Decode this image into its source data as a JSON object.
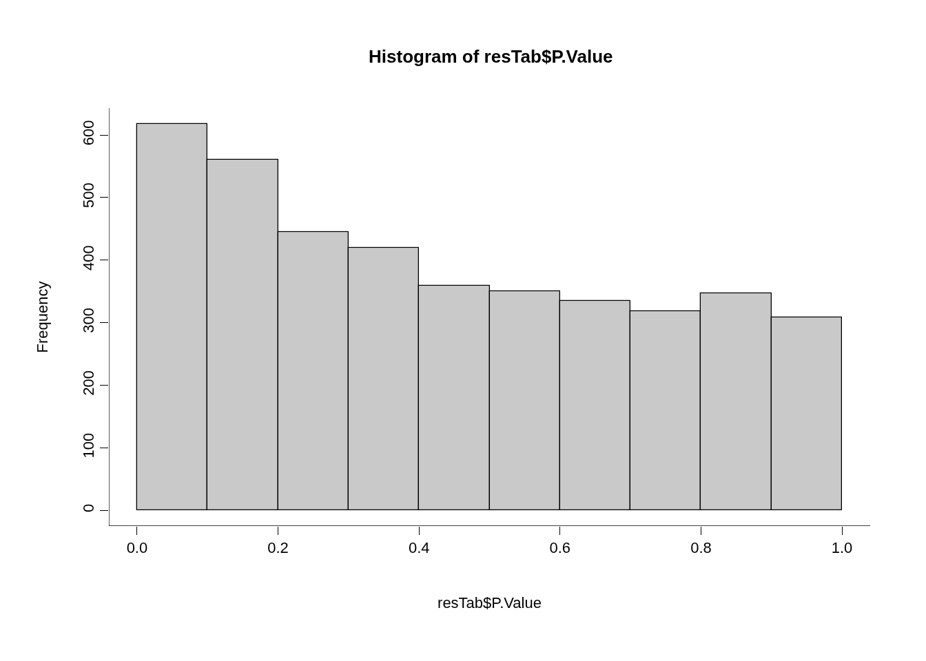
{
  "chart_data": {
    "type": "histogram",
    "title": "Histogram of resTab$P.Value",
    "xlabel": "resTab$P.Value",
    "ylabel": "Frequency",
    "bins": [
      0.0,
      0.1,
      0.2,
      0.3,
      0.4,
      0.5,
      0.6,
      0.7,
      0.8,
      0.9,
      1.0
    ],
    "values": [
      618,
      560,
      445,
      420,
      359,
      350,
      335,
      318,
      347,
      308
    ],
    "color": "#c9c9c9",
    "xlim": [
      -0.04,
      1.04
    ],
    "ylim": [
      -25,
      643
    ],
    "xticks": [
      {
        "value": 0,
        "label": "0.0"
      },
      {
        "value": 0.2,
        "label": "0.2"
      },
      {
        "value": 0.4,
        "label": "0.4"
      },
      {
        "value": 0.6,
        "label": "0.6"
      },
      {
        "value": 0.8,
        "label": "0.8"
      },
      {
        "value": 1.0,
        "label": "1.0"
      }
    ],
    "yticks": [
      0,
      100,
      200,
      300,
      400,
      500,
      600
    ]
  }
}
